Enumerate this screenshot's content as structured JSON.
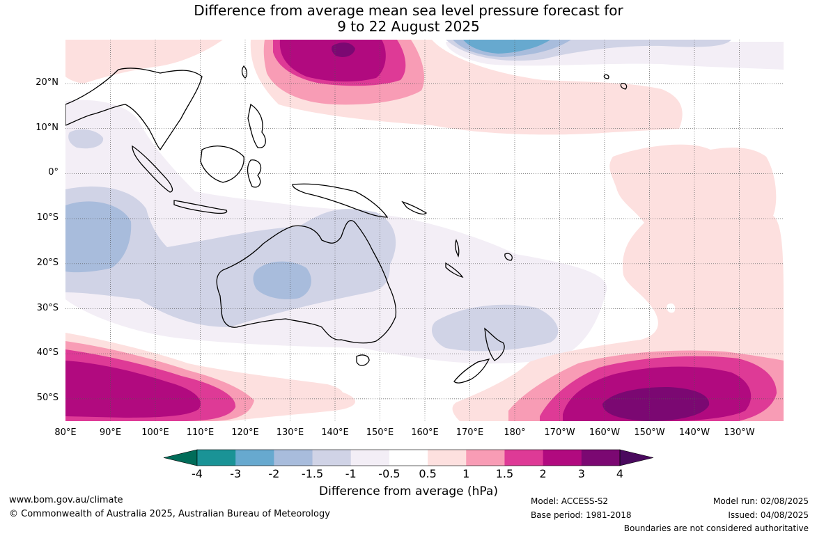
{
  "title": {
    "line1": "Difference from average mean sea level pressure forecast for",
    "line2": "9 to 22 August 2025"
  },
  "map": {
    "lat_labels": [
      "20°N",
      "10°N",
      "0°",
      "10°S",
      "20°S",
      "30°S",
      "40°S",
      "50°S"
    ],
    "lon_labels": [
      "80°E",
      "90°E",
      "100°E",
      "110°E",
      "120°E",
      "130°E",
      "140°E",
      "150°E",
      "160°E",
      "170°E",
      "180°",
      "170°W",
      "160°W",
      "150°W",
      "140°W",
      "130°W"
    ]
  },
  "colorbar": {
    "ticks": [
      "-4",
      "-3",
      "-2",
      "-1.5",
      "-1",
      "-0.5",
      "0.5",
      "1",
      "1.5",
      "2",
      "3",
      "4"
    ],
    "colors": [
      "#1a9396",
      "#67a9cf",
      "#a8bcdc",
      "#d0d3e6",
      "#f3eef6",
      "#ffffff",
      "#fde0df",
      "#f89cb5",
      "#de3a96",
      "#b10a7f",
      "#7b0872"
    ],
    "extend_low_color": "#016c59",
    "extend_high_color": "#4a0a5e",
    "label": "Difference from average (hPa)"
  },
  "footer": {
    "website": "www.bom.gov.au/climate",
    "copyright": "© Commonwealth of Australia 2025, Australian Bureau of Meteorology",
    "model": "Model: ACCESS-S2",
    "base_period": "Base period: 1981-2018",
    "model_run": "Model run: 02/08/2025",
    "issued": "Issued: 04/08/2025",
    "disclaimer": "Boundaries are not considered authoritative"
  }
}
